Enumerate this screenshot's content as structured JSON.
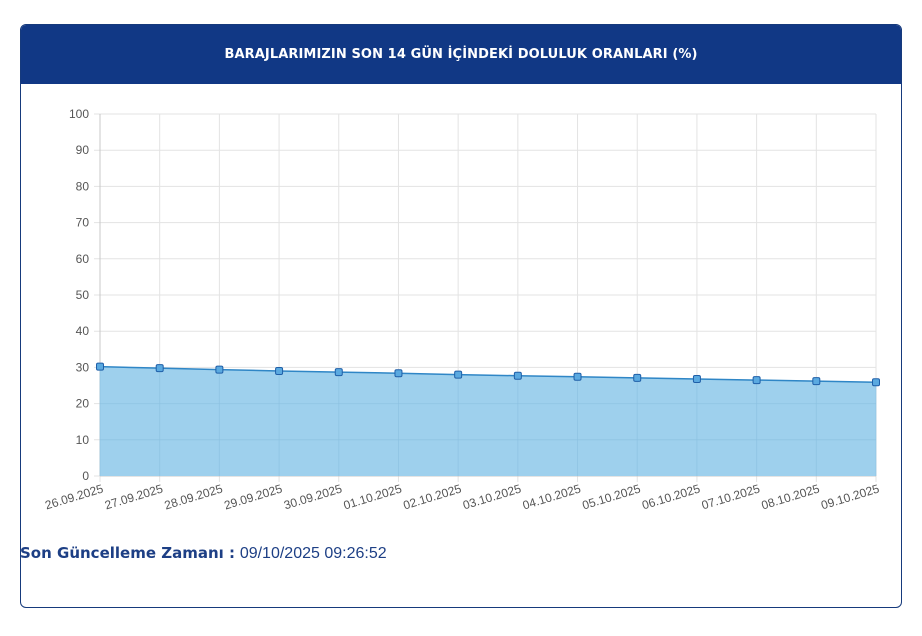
{
  "card": {
    "title": "BARAJLARIMIZIN SON 14 GÜN İÇİNDEKİ DOLULUK ORANLARI (%)"
  },
  "update": {
    "label": "Son Güncelleme Zamanı :",
    "value": "09/10/2025 09:26:52"
  },
  "colors": {
    "header_bg": "#113885",
    "line": "#2f86c6",
    "area": "#9ed0ed",
    "point_fill": "#5aa9e0",
    "point_stroke": "#1f5fa8",
    "grid": "#e3e3e3",
    "text_dark": "#1d3f85"
  },
  "chart_data": {
    "type": "area",
    "x": [
      "26.09.2025",
      "27.09.2025",
      "28.09.2025",
      "29.09.2025",
      "30.09.2025",
      "01.10.2025",
      "02.10.2025",
      "03.10.2025",
      "04.10.2025",
      "05.10.2025",
      "06.10.2025",
      "07.10.2025",
      "08.10.2025",
      "09.10.2025"
    ],
    "series": [
      {
        "values": [
          30.2,
          29.8,
          29.4,
          29.0,
          28.7,
          28.4,
          28.0,
          27.7,
          27.4,
          27.1,
          26.8,
          26.5,
          26.2,
          25.9
        ]
      }
    ],
    "ylim": [
      0,
      100
    ],
    "yticks": [
      0,
      10,
      20,
      30,
      40,
      50,
      60,
      70,
      80,
      90,
      100
    ],
    "grid": true,
    "legend": "none",
    "title": "BARAJLARIMIZIN SON 14 GÜN İÇİNDEKİ DOLULUK ORANLARI (%)"
  }
}
